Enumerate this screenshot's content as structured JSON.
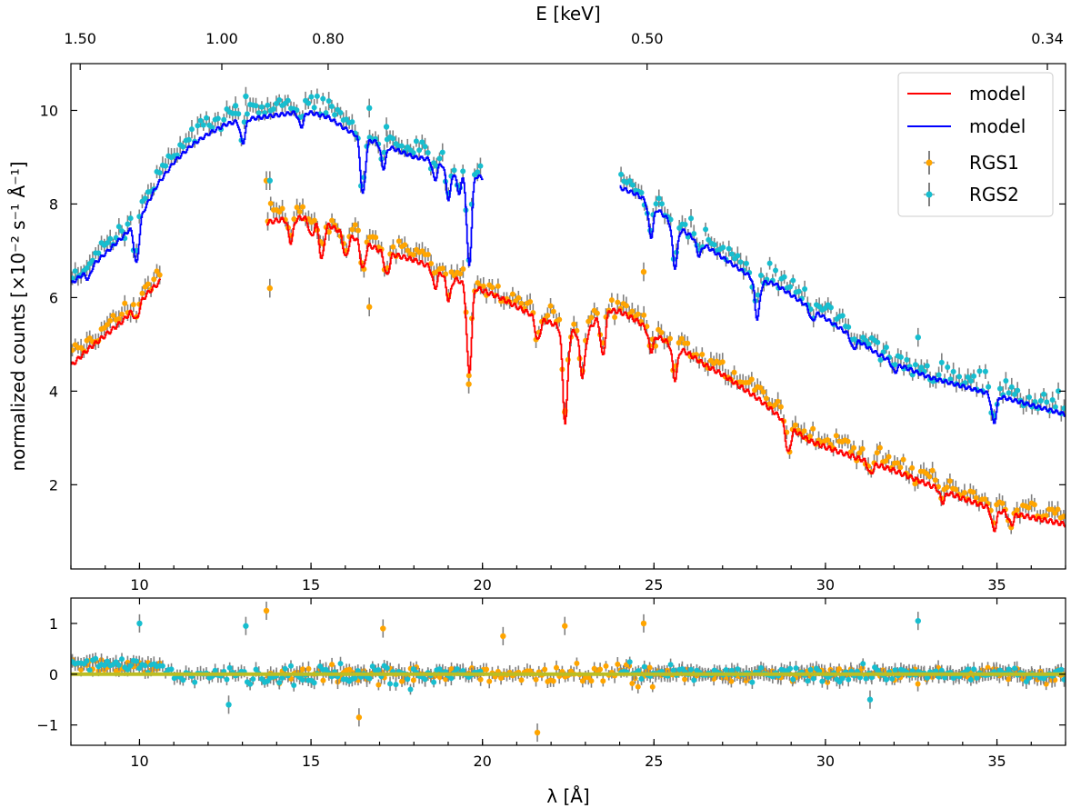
{
  "chart_data": [
    {
      "type": "line",
      "panel": "spectrum",
      "xlabel_top": "E [keV]",
      "ylabel": "normalized counts [×10⁻² s⁻¹ Å⁻¹]",
      "xlim": [
        8,
        37
      ],
      "ylim": [
        0.2,
        11.0
      ],
      "xticks": [
        10,
        15,
        20,
        25,
        30,
        35
      ],
      "yticks": [
        2,
        4,
        6,
        8,
        10
      ],
      "top_ticks": [
        {
          "label": "1.50",
          "energy_keV": 1.5,
          "wavelength": 8.27
        },
        {
          "label": "1.00",
          "energy_keV": 1.0,
          "wavelength": 12.4
        },
        {
          "label": "0.80",
          "energy_keV": 0.8,
          "wavelength": 15.5
        },
        {
          "label": "0.50",
          "energy_keV": 0.5,
          "wavelength": 24.8
        },
        {
          "label": "0.34",
          "energy_keV": 0.34,
          "wavelength": 36.47
        }
      ],
      "legend": {
        "position": "top-right",
        "entries": [
          {
            "label": "model",
            "color": "#ff0000",
            "kind": "line"
          },
          {
            "label": "model",
            "color": "#0000ff",
            "kind": "line"
          },
          {
            "label": "RGS1",
            "color": "#ffa500",
            "kind": "marker"
          },
          {
            "label": "RGS2",
            "color": "#17becf",
            "kind": "marker"
          }
        ]
      },
      "series": [
        {
          "name": "model",
          "instrument": "RGS1",
          "color": "#ff0000",
          "segments": [
            {
              "x": [
                8.0,
                8.5,
                9.0,
                9.5,
                9.8,
                10.0,
                10.3,
                10.6
              ],
              "y": [
                4.55,
                4.9,
                5.2,
                5.5,
                5.75,
                5.9,
                6.15,
                6.35
              ]
            },
            {
              "x": [
                13.7,
                14.0,
                14.5,
                15.0,
                15.5,
                16.0,
                16.5,
                17.0,
                17.5,
                18.0,
                18.5,
                19.0,
                19.5,
                20.0,
                20.5,
                21.0,
                21.5,
                22.0,
                22.5,
                23.0,
                23.5,
                24.0,
                24.5,
                25.0,
                25.5,
                26.0,
                26.5,
                27.0,
                27.5,
                28.0,
                28.5,
                29.0,
                29.5,
                30.0,
                31.0,
                32.0,
                33.0,
                34.0,
                35.0,
                36.0,
                37.0
              ],
              "y": [
                7.6,
                7.65,
                7.7,
                7.7,
                7.55,
                7.35,
                7.2,
                7.0,
                6.9,
                6.8,
                6.65,
                6.45,
                6.3,
                6.15,
                6.0,
                5.8,
                5.6,
                5.45,
                5.3,
                5.2,
                5.75,
                5.7,
                5.5,
                5.2,
                5.0,
                4.8,
                4.55,
                4.35,
                4.1,
                3.85,
                3.55,
                3.2,
                2.95,
                2.8,
                2.55,
                2.3,
                2.0,
                1.7,
                1.45,
                1.3,
                1.15
              ]
            }
          ],
          "absorption_lines": [
            {
              "x": 9.9,
              "depth": 0.3
            },
            {
              "x": 14.4,
              "depth": 0.5
            },
            {
              "x": 15.0,
              "depth": 0.4
            },
            {
              "x": 15.3,
              "depth": 0.8
            },
            {
              "x": 16.0,
              "depth": 0.5
            },
            {
              "x": 16.5,
              "depth": 0.6
            },
            {
              "x": 17.2,
              "depth": 0.5
            },
            {
              "x": 18.6,
              "depth": 0.4
            },
            {
              "x": 19.0,
              "depth": 0.5
            },
            {
              "x": 19.6,
              "depth": 1.9
            },
            {
              "x": 21.6,
              "depth": 0.5
            },
            {
              "x": 22.4,
              "depth": 2.0
            },
            {
              "x": 22.9,
              "depth": 0.9
            },
            {
              "x": 23.5,
              "depth": 1.0
            },
            {
              "x": 24.9,
              "depth": 0.4
            },
            {
              "x": 25.6,
              "depth": 0.7
            },
            {
              "x": 28.9,
              "depth": 0.6
            },
            {
              "x": 31.3,
              "depth": 0.25
            },
            {
              "x": 33.4,
              "depth": 0.25
            },
            {
              "x": 34.9,
              "depth": 0.45
            },
            {
              "x": 35.4,
              "depth": 0.25
            }
          ]
        },
        {
          "name": "model",
          "instrument": "RGS2",
          "color": "#0000ff",
          "segments": [
            {
              "x": [
                8.0,
                8.5,
                9.0,
                9.5,
                10.0,
                10.5,
                11.0,
                11.5,
                12.0,
                12.5,
                13.0,
                13.5,
                14.0,
                14.5,
                15.0,
                15.5,
                16.0,
                16.5,
                17.0,
                17.5,
                18.0,
                18.5,
                19.0,
                19.5,
                20.0
              ],
              "y": [
                6.3,
                6.6,
                6.95,
                7.3,
                7.7,
                8.4,
                8.9,
                9.25,
                9.5,
                9.7,
                9.8,
                9.85,
                9.9,
                9.95,
                9.95,
                9.85,
                9.6,
                9.4,
                9.3,
                9.15,
                9.0,
                8.95,
                8.8,
                8.7,
                8.55
              ]
            },
            {
              "x": [
                24.0,
                24.5,
                25.0,
                25.5,
                26.0,
                26.5,
                27.0,
                27.5,
                28.0,
                28.5,
                29.0,
                29.5,
                30.0,
                30.5,
                31.0,
                31.5,
                32.0,
                32.5,
                33.0,
                33.5,
                34.0,
                34.5,
                35.0,
                35.5,
                36.0,
                36.5,
                37.0
              ],
              "y": [
                8.35,
                8.2,
                7.95,
                7.6,
                7.35,
                7.1,
                6.85,
                6.6,
                6.35,
                6.3,
                6.05,
                5.8,
                5.55,
                5.3,
                5.05,
                4.8,
                4.6,
                4.45,
                4.3,
                4.2,
                4.1,
                4.0,
                3.9,
                3.8,
                3.7,
                3.6,
                3.5
              ]
            }
          ],
          "absorption_lines": [
            {
              "x": 8.5,
              "depth": 0.2
            },
            {
              "x": 9.9,
              "depth": 0.9
            },
            {
              "x": 13.0,
              "depth": 0.5
            },
            {
              "x": 14.7,
              "depth": 0.3
            },
            {
              "x": 16.5,
              "depth": 1.2
            },
            {
              "x": 17.1,
              "depth": 0.5
            },
            {
              "x": 18.6,
              "depth": 0.4
            },
            {
              "x": 19.0,
              "depth": 0.7
            },
            {
              "x": 19.3,
              "depth": 0.5
            },
            {
              "x": 19.6,
              "depth": 2.0
            },
            {
              "x": 24.9,
              "depth": 0.7
            },
            {
              "x": 25.6,
              "depth": 0.9
            },
            {
              "x": 26.3,
              "depth": 0.3
            },
            {
              "x": 28.0,
              "depth": 0.8
            },
            {
              "x": 29.6,
              "depth": 0.25
            },
            {
              "x": 30.8,
              "depth": 0.25
            },
            {
              "x": 32.0,
              "depth": 0.2
            },
            {
              "x": 34.9,
              "depth": 0.6
            }
          ]
        },
        {
          "name": "RGS1",
          "color": "#ffa500",
          "kind": "data",
          "scatter": 0.22,
          "outliers": [
            {
              "x": 13.7,
              "y": 8.5
            },
            {
              "x": 13.8,
              "y": 6.2
            },
            {
              "x": 16.7,
              "y": 5.8
            },
            {
              "x": 19.6,
              "y": 4.15
            },
            {
              "x": 22.4,
              "y": 3.55
            },
            {
              "x": 24.7,
              "y": 6.55
            }
          ]
        },
        {
          "name": "RGS2",
          "color": "#17becf",
          "kind": "data",
          "scatter": 0.22,
          "outliers": [
            {
              "x": 12.8,
              "y": 10.1
            },
            {
              "x": 13.1,
              "y": 10.3
            },
            {
              "x": 13.8,
              "y": 8.5
            },
            {
              "x": 16.7,
              "y": 10.05
            },
            {
              "x": 17.2,
              "y": 9.65
            },
            {
              "x": 32.7,
              "y": 5.15
            }
          ]
        }
      ]
    },
    {
      "type": "scatter",
      "panel": "residuals",
      "xlabel": "λ [Å]",
      "ylabel": "",
      "xlim": [
        8,
        37
      ],
      "ylim": [
        -1.4,
        1.5
      ],
      "xticks": [
        10,
        15,
        20,
        25,
        30,
        35
      ],
      "yticks": [
        -1,
        0,
        1
      ],
      "zero_line_color": "#bcbd22",
      "series": [
        {
          "name": "RGS1",
          "color": "#ffa500",
          "outliers": [
            {
              "x": 13.7,
              "y": 1.25
            },
            {
              "x": 17.1,
              "y": 0.9
            },
            {
              "x": 21.6,
              "y": -1.15
            },
            {
              "x": 20.6,
              "y": 0.75
            },
            {
              "x": 22.4,
              "y": 0.95
            },
            {
              "x": 24.7,
              "y": 1.0
            },
            {
              "x": 16.4,
              "y": -0.85
            }
          ]
        },
        {
          "name": "RGS2",
          "color": "#17becf",
          "outliers": [
            {
              "x": 10.0,
              "y": 1.0
            },
            {
              "x": 13.1,
              "y": 0.95
            },
            {
              "x": 32.7,
              "y": 1.05
            },
            {
              "x": 12.6,
              "y": -0.6
            },
            {
              "x": 31.3,
              "y": -0.5
            }
          ]
        }
      ]
    }
  ]
}
